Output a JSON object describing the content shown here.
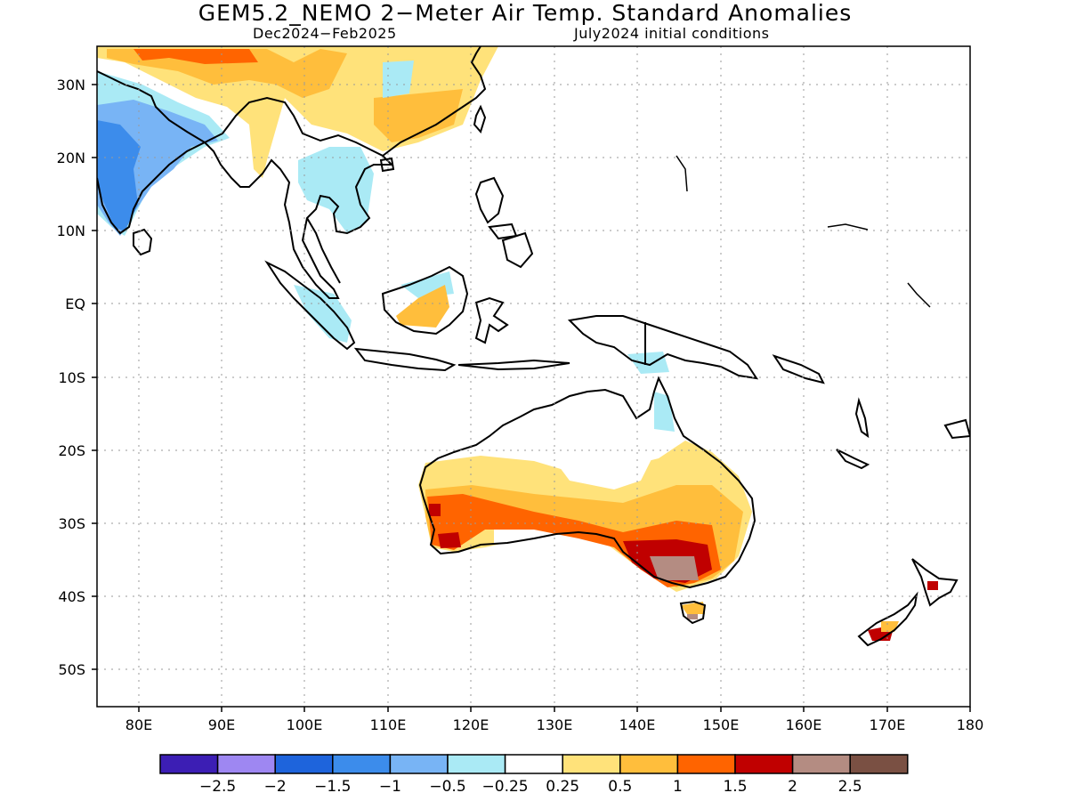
{
  "title": "GEM5.2_NEMO 2−Meter Air Temp. Standard Anomalies",
  "period": "Dec2024−Feb2025",
  "initial_conditions": "July2024 initial conditions",
  "lat_labels": [
    "30N",
    "20N",
    "10N",
    "EQ",
    "10S",
    "20S",
    "30S",
    "40S",
    "50S"
  ],
  "lon_labels": [
    "80E",
    "90E",
    "100E",
    "110E",
    "120E",
    "130E",
    "140E",
    "150E",
    "160E",
    "170E",
    "180"
  ],
  "colorbar": {
    "colors": [
      "#3c1eb4",
      "#9e87f2",
      "#1e64dc",
      "#3c8ceb",
      "#78b4f5",
      "#aaeaf5",
      "#ffffff",
      "#ffe27a",
      "#ffbe3c",
      "#ff6400",
      "#c00000",
      "#b48c82",
      "#7a5043"
    ],
    "labels": [
      "−2.5",
      "−2",
      "−1.5",
      "−1",
      "−0.5",
      "−0.25",
      "0.25",
      "0.5",
      "1",
      "1.5",
      "2",
      "2.5"
    ]
  }
}
